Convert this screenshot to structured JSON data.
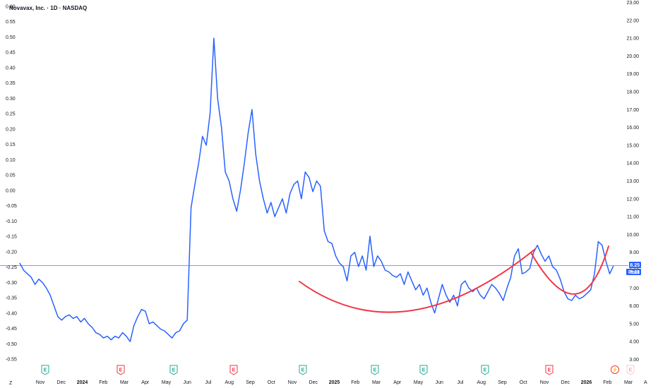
{
  "chart_data": {
    "type": "line",
    "title": "Novavax, Inc. · 1D · NASDAQ",
    "left_axis": {
      "ticks": [
        "0.60",
        "0.55",
        "0.50",
        "0.45",
        "0.40",
        "0.35",
        "0.30",
        "0.25",
        "0.20",
        "0.15",
        "0.10",
        "0.05",
        "0.00",
        "-0.05",
        "-0.10",
        "-0.15",
        "-0.20",
        "-0.25",
        "-0.30",
        "-0.35",
        "-0.40",
        "-0.45",
        "-0.50",
        "-0.55"
      ],
      "range": [
        -0.55,
        0.6
      ]
    },
    "right_axis": {
      "ticks": [
        "23.00",
        "22.00",
        "21.00",
        "20.00",
        "19.00",
        "18.00",
        "17.00",
        "16.00",
        "15.00",
        "14.00",
        "13.00",
        "12.00",
        "11.00",
        "10.00",
        "9.00",
        "8.00",
        "7.00",
        "6.00",
        "5.00",
        "4.00",
        "3.00"
      ],
      "range": [
        3.0,
        23.0
      ]
    },
    "x_axis": {
      "labels": [
        "Nov",
        "Dec",
        "2024",
        "Feb",
        "Mar",
        "Apr",
        "May",
        "Jun",
        "Jul",
        "Aug",
        "Sep",
        "Oct",
        "Nov",
        "Dec",
        "2025",
        "Feb",
        "Mar",
        "Apr",
        "May",
        "Jun",
        "Jul",
        "Aug",
        "Sep",
        "Oct",
        "Nov",
        "Dec",
        "2026",
        "Feb",
        "Mar"
      ],
      "bold": [
        "2024",
        "2025",
        "2026"
      ]
    },
    "series": [
      {
        "color": "#2962ff",
        "values": [
          8.4,
          8.0,
          7.8,
          7.6,
          7.2,
          7.5,
          7.3,
          7.0,
          6.6,
          6.0,
          5.4,
          5.2,
          5.4,
          5.5,
          5.3,
          5.4,
          5.1,
          5.3,
          5.0,
          4.8,
          4.5,
          4.4,
          4.2,
          4.3,
          4.1,
          4.3,
          4.2,
          4.5,
          4.3,
          4.0,
          4.9,
          5.4,
          5.8,
          5.7,
          5.0,
          5.1,
          4.9,
          4.7,
          4.6,
          4.4,
          4.2,
          4.5,
          4.6,
          5.0,
          5.2,
          11.5,
          12.8,
          14.0,
          15.5,
          15.0,
          16.8,
          21.0,
          17.6,
          16.0,
          13.5,
          13.0,
          12.0,
          11.3,
          12.5,
          14.0,
          15.7,
          17.0,
          14.5,
          13.0,
          12.0,
          11.2,
          11.8,
          11.0,
          11.5,
          12.0,
          11.2,
          12.3,
          12.8,
          13.0,
          12.0,
          13.5,
          13.2,
          12.4,
          13.0,
          12.7,
          10.2,
          9.6,
          9.5,
          8.8,
          8.4,
          8.2,
          7.4,
          8.8,
          9.0,
          8.2,
          8.8,
          8.0,
          9.9,
          8.2,
          8.8,
          8.5,
          8.0,
          7.9,
          7.7,
          7.6,
          7.8,
          7.2,
          7.9,
          7.4,
          6.9,
          7.2,
          6.6,
          7.0,
          6.2,
          5.6,
          6.4,
          7.2,
          6.6,
          6.2,
          6.6,
          6.0,
          7.2,
          7.4,
          7.0,
          6.8,
          7.0,
          6.6,
          6.4,
          6.8,
          7.2,
          7.0,
          6.7,
          6.3,
          7.0,
          7.6,
          8.8,
          9.2,
          7.8,
          7.9,
          8.1,
          9.0,
          9.4,
          8.9,
          8.5,
          8.8,
          8.2,
          8.0,
          7.5,
          6.8,
          6.4,
          6.3,
          6.6,
          6.4,
          6.5,
          6.7,
          6.9,
          7.8,
          9.6,
          9.4,
          8.5,
          7.8,
          8.25
        ]
      }
    ],
    "annotations": [
      {
        "type": "arc",
        "color": "#f23645",
        "label": ""
      },
      {
        "type": "arc",
        "color": "#f23645",
        "label": ""
      }
    ],
    "price_line": {
      "value": 8.25,
      "color": "#2962ff"
    },
    "grid": false,
    "legend": "none"
  },
  "price_label": "8.25",
  "post_label": "Post",
  "post_price": "8.23",
  "events": [
    {
      "symbol": "E",
      "kind": "earnings"
    },
    {
      "symbol": "E",
      "kind": "earnings-negative"
    },
    {
      "symbol": "E",
      "kind": "earnings"
    },
    {
      "symbol": "E",
      "kind": "earnings-negative"
    },
    {
      "symbol": "E",
      "kind": "earnings"
    },
    {
      "symbol": "E",
      "kind": "earnings"
    },
    {
      "symbol": "E",
      "kind": "earnings"
    },
    {
      "symbol": "E",
      "kind": "earnings"
    },
    {
      "symbol": "E",
      "kind": "earnings-negative"
    },
    {
      "symbol": "⚡",
      "kind": "split"
    },
    {
      "symbol": "E",
      "kind": "upcoming"
    }
  ],
  "corner_left": "Z",
  "corner_right": "A",
  "colors": {
    "line": "#2962ff",
    "arc": "#f23645",
    "green": "#22ab94",
    "red": "#f23645"
  }
}
